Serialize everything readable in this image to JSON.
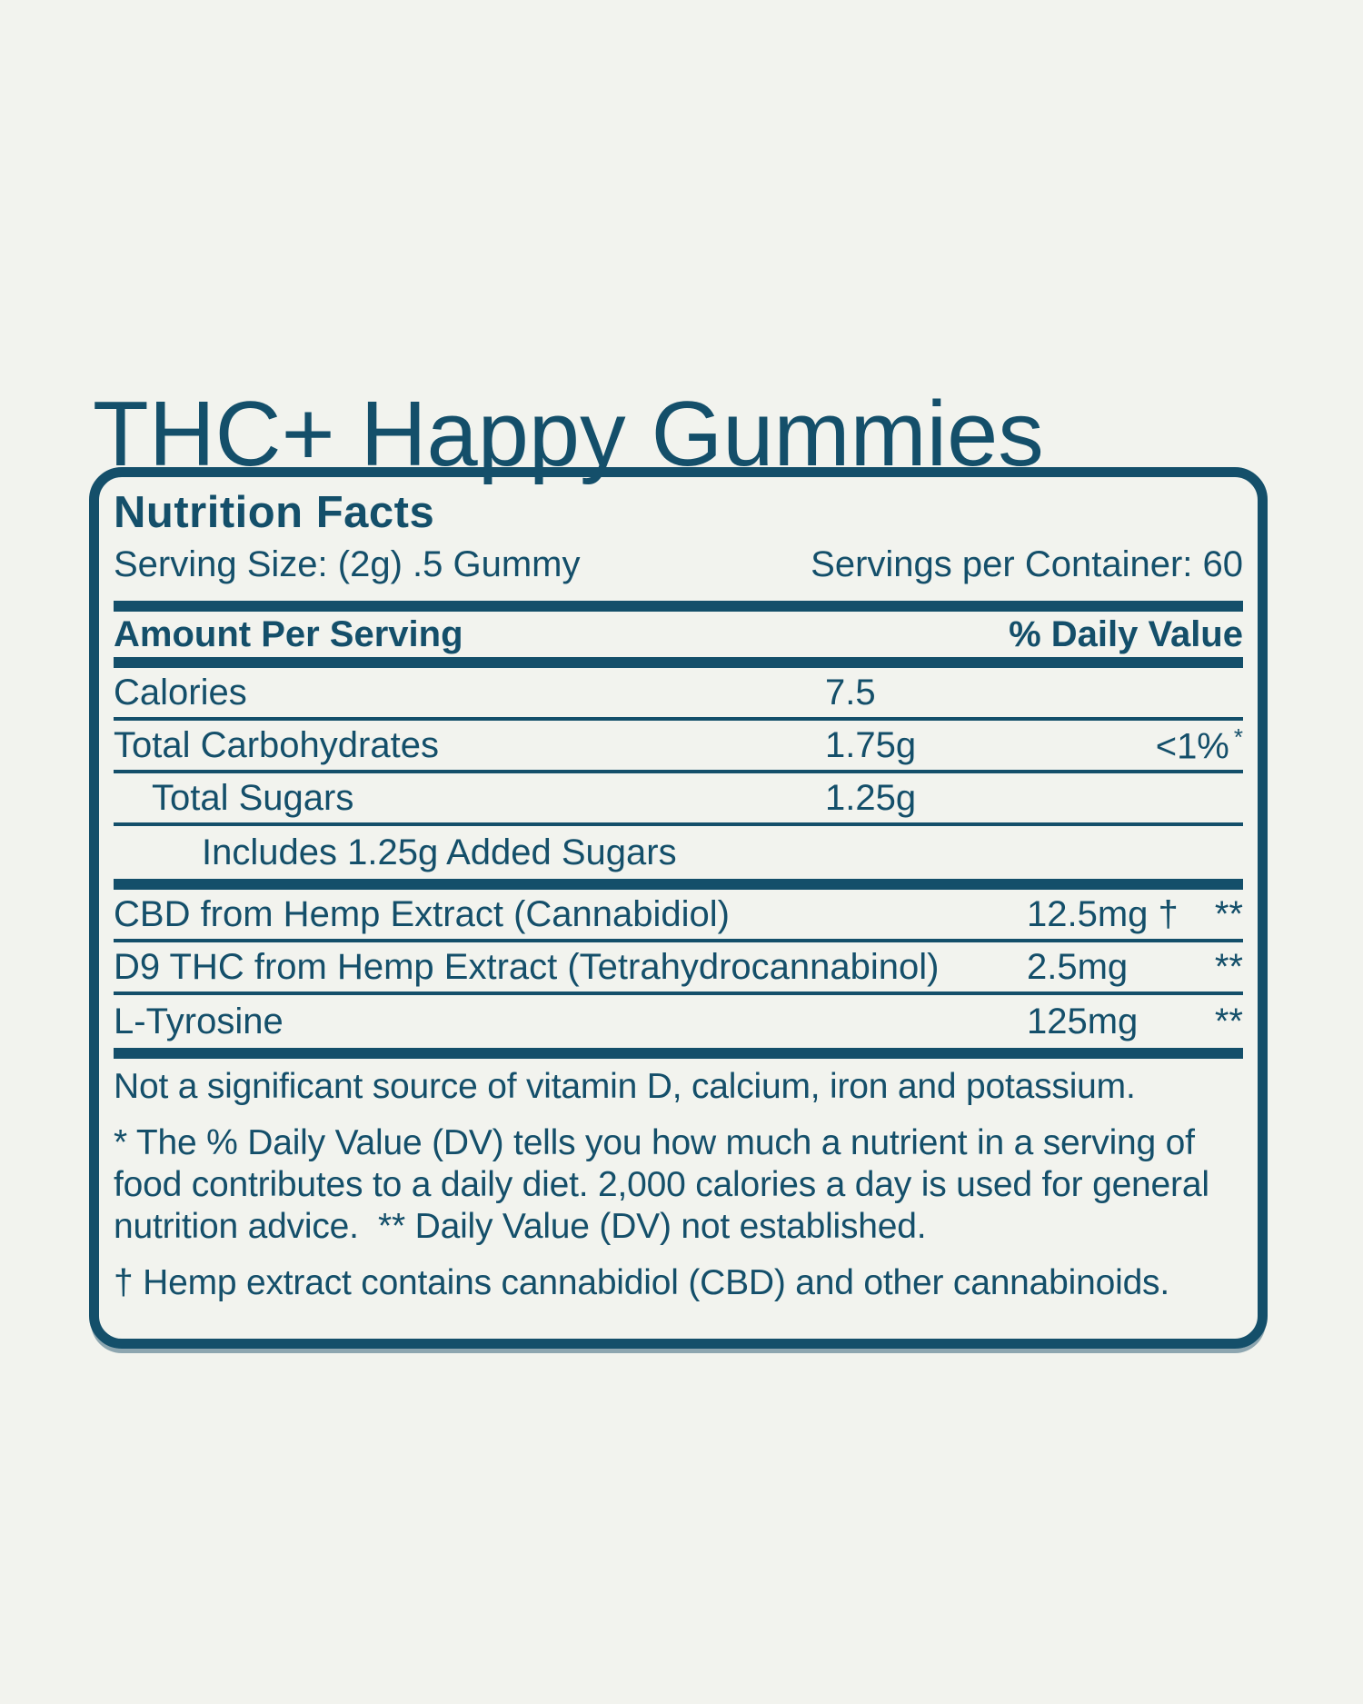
{
  "title": "THC+ Happy Gummies",
  "colors": {
    "accent_teal": "#144F6A",
    "background": "#F2F3EE"
  },
  "label": {
    "header": "Nutrition Facts",
    "serving_size": "Serving Size: (2g) .5 Gummy",
    "servings_per_container": "Servings per Container: 60",
    "amount_header": "Amount Per Serving",
    "dv_header": "% Daily Value",
    "macro_rows": [
      {
        "name": "Calories",
        "amount": "7.5",
        "dv": "",
        "dv_note": "",
        "indent": 0
      },
      {
        "name": "Total Carbohydrates",
        "amount": "1.75g",
        "dv": "<1%",
        "dv_note": "*",
        "indent": 1
      },
      {
        "name": "Total Sugars",
        "amount": "1.25g",
        "dv": "",
        "dv_note": "",
        "indent": 1
      },
      {
        "name": "Includes 1.25g Added Sugars",
        "amount": "",
        "dv": "",
        "dv_note": "",
        "indent": 2
      }
    ],
    "active_rows": [
      {
        "name": "CBD from Hemp Extract (Cannabidiol)",
        "amount": "12.5mg †",
        "dv": "**",
        "dv_note": "",
        "indent": 0
      },
      {
        "name": "D9 THC from Hemp Extract (Tetrahydrocannabinol)",
        "amount": "2.5mg",
        "dv": "**",
        "dv_note": "",
        "indent": 0
      },
      {
        "name": "L-Tyrosine",
        "amount": "125mg",
        "dv": "**",
        "dv_note": "",
        "indent": 0
      }
    ],
    "footnotes": [
      "Not a significant source of vitamin D, calcium, iron and potassium.",
      "* The % Daily Value (DV) tells you how much a nutrient in a serving of food contributes to a daily diet. 2,000 calories a day is used for general nutrition advice.  ** Daily Value (DV) not established.",
      "† Hemp extract contains cannabidiol (CBD) and other cannabinoids."
    ]
  }
}
